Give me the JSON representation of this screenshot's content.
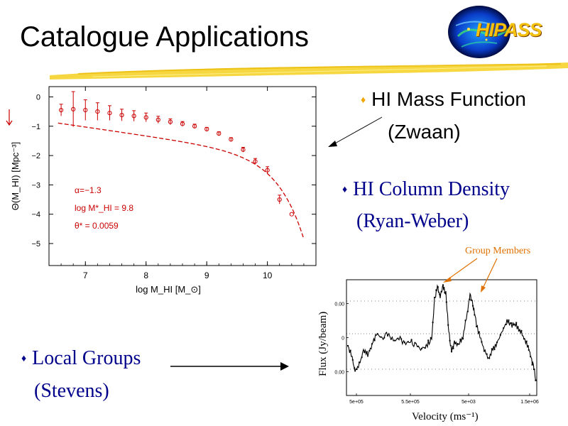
{
  "slide": {
    "title": "Catalogue Applications"
  },
  "logo": {
    "text": "HIPASS"
  },
  "bullets": [
    {
      "label": "HI Mass Function",
      "author": "(Zwaan)"
    },
    {
      "label": "HI Column Density",
      "author": "(Ryan-Weber)"
    },
    {
      "label": "Local Groups",
      "author": "(Stevens)"
    }
  ],
  "bullet_symbol": "♦",
  "colors": {
    "accent_orange": "#f2a600",
    "bullet_navy": "#00008b",
    "annotation_orange": "#e07000",
    "plot_red": "#cc0000"
  },
  "chart_data": [
    {
      "type": "scatter",
      "title": "",
      "xlabel": "log M_HI [M_⊙]",
      "ylabel": "Θ(M_HI) [Mpc⁻³]",
      "xlim": [
        6.4,
        10.8
      ],
      "ylim": [
        -5.75,
        0.35
      ],
      "x_ticks": [
        "7",
        "8",
        "9",
        "10"
      ],
      "y_ticks": [
        "0",
        "−1",
        "−2",
        "−3",
        "−4",
        "−5"
      ],
      "series": [
        {
          "x": [
            6.6,
            6.8,
            7.0,
            7.2,
            7.4,
            7.6,
            7.8,
            8.0,
            8.2,
            8.4,
            8.6,
            8.8,
            9.0,
            9.2,
            9.4,
            9.6,
            9.8,
            10.0,
            10.2,
            10.4
          ],
          "y": [
            -0.45,
            -0.42,
            -0.45,
            -0.5,
            -0.55,
            -0.62,
            -0.65,
            -0.7,
            -0.78,
            -0.85,
            -0.92,
            -1.0,
            -1.1,
            -1.25,
            -1.45,
            -1.8,
            -2.2,
            -2.5,
            -3.5,
            -4.0
          ],
          "err": [
            0.2,
            0.6,
            0.35,
            0.3,
            0.25,
            0.2,
            0.18,
            0.15,
            0.12,
            0.1,
            0.08,
            0.07,
            0.06,
            0.06,
            0.06,
            0.08,
            0.1,
            0.12,
            0.15,
            0.0
          ]
        }
      ],
      "fit": {
        "type": "schechter",
        "alpha": -1.3,
        "log_mstar": 9.8,
        "theta_star": 0.0059
      },
      "annotations": [
        "α=−1.3",
        "log M*_HI = 9.8",
        "θ* = 0.0059"
      ]
    },
    {
      "type": "line",
      "title": "",
      "xlabel": "Velocity (ms⁻¹)",
      "ylabel": "Flux (Jy/beam)",
      "xlim": [
        500000,
        1500000
      ],
      "ylim": [
        -0.085,
        0.085
      ],
      "x_ticks": [
        "5e+05",
        "5.5e+05",
        "5e+03",
        "1.5e+06"
      ],
      "y_ticks": [
        "0.00",
        "0",
        "0.00"
      ],
      "annotations": [
        "Group Members"
      ]
    }
  ]
}
